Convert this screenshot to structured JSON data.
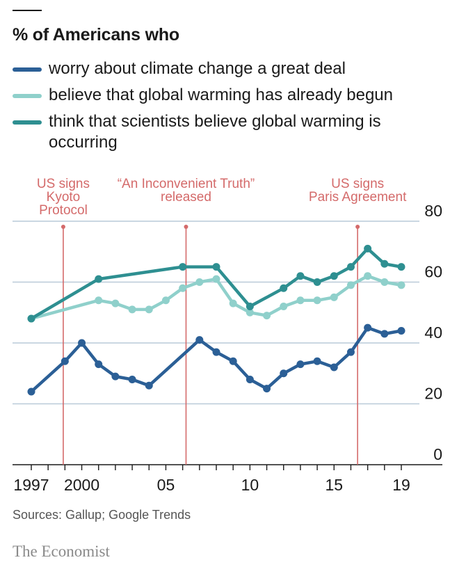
{
  "title": "% of Americans who",
  "colors": {
    "worry": "#2b5f96",
    "believe": "#8fd0cb",
    "scientists": "#2e8f91",
    "annotation": "#d46a6a",
    "grid": "#b9cad8",
    "axis": "#1a1a1a"
  },
  "chart_data": {
    "type": "line",
    "ylim": [
      0,
      80
    ],
    "xlim": [
      1997,
      2019
    ],
    "yticks": [
      0,
      20,
      40,
      60,
      80
    ],
    "xtick_values": [
      1997,
      2000,
      2005,
      2010,
      2015,
      2019
    ],
    "xtick_labels": [
      "1997",
      "2000",
      "05",
      "10",
      "15",
      "19"
    ],
    "series": [
      {
        "key": "worry",
        "name": "worry about climate change a great deal",
        "color": "#2b5f96",
        "points": [
          [
            1997,
            24
          ],
          [
            1999,
            34
          ],
          [
            2000,
            40
          ],
          [
            2001,
            33
          ],
          [
            2002,
            29
          ],
          [
            2003,
            28
          ],
          [
            2004,
            26
          ],
          [
            2007,
            41
          ],
          [
            2008,
            37
          ],
          [
            2009,
            34
          ],
          [
            2010,
            28
          ],
          [
            2011,
            25
          ],
          [
            2012,
            30
          ],
          [
            2013,
            33
          ],
          [
            2014,
            34
          ],
          [
            2015,
            32
          ],
          [
            2016,
            37
          ],
          [
            2017,
            45
          ],
          [
            2018,
            43
          ],
          [
            2019,
            44
          ]
        ]
      },
      {
        "key": "believe",
        "name": "believe that global warming has already begun",
        "color": "#8fd0cb",
        "points": [
          [
            1997,
            48
          ],
          [
            2001,
            54
          ],
          [
            2002,
            53
          ],
          [
            2003,
            51
          ],
          [
            2004,
            51
          ],
          [
            2005,
            54
          ],
          [
            2006,
            58
          ],
          [
            2007,
            60
          ],
          [
            2008,
            61
          ],
          [
            2009,
            53
          ],
          [
            2010,
            50
          ],
          [
            2011,
            49
          ],
          [
            2012,
            52
          ],
          [
            2013,
            54
          ],
          [
            2014,
            54
          ],
          [
            2015,
            55
          ],
          [
            2016,
            59
          ],
          [
            2017,
            62
          ],
          [
            2018,
            60
          ],
          [
            2019,
            59
          ]
        ]
      },
      {
        "key": "scientists",
        "name": "think that scientists believe global warming is occurring",
        "color": "#2e8f91",
        "points": [
          [
            1997,
            48
          ],
          [
            2001,
            61
          ],
          [
            2006,
            65
          ],
          [
            2008,
            65
          ],
          [
            2010,
            52
          ],
          [
            2012,
            58
          ],
          [
            2013,
            62
          ],
          [
            2014,
            60
          ],
          [
            2015,
            62
          ],
          [
            2016,
            65
          ],
          [
            2017,
            71
          ],
          [
            2018,
            66
          ],
          [
            2019,
            65
          ]
        ]
      }
    ],
    "annotations": [
      {
        "x": 1998.9,
        "lines": [
          "US signs",
          "Kyoto",
          "Protocol"
        ]
      },
      {
        "x": 2006.2,
        "lines": [
          "“An Inconvenient Truth”",
          "released"
        ]
      },
      {
        "x": 2016.4,
        "lines": [
          "US signs",
          "Paris Agreement"
        ]
      }
    ]
  },
  "source": "Sources: Gallup; Google Trends",
  "brand": "The Economist"
}
